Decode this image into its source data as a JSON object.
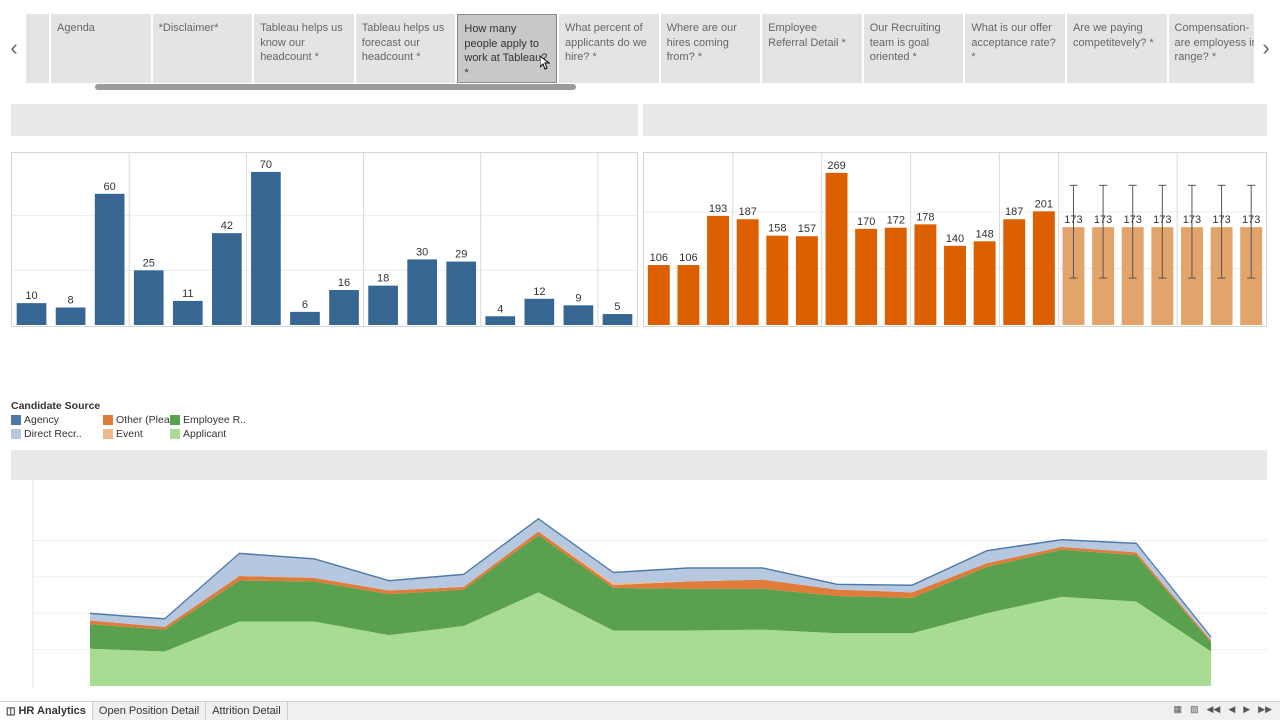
{
  "story": {
    "points": [
      {
        "label": "Agenda"
      },
      {
        "label": "*Disclaimer*"
      },
      {
        "label": "Tableau helps us know our headcount *"
      },
      {
        "label": "Tableau helps us forecast our headcount *"
      },
      {
        "label": "How many people apply to work at Tableau? *",
        "active": true
      },
      {
        "label": "What percent of applicants do we hire? *"
      },
      {
        "label": "Where are our hires coming from? *"
      },
      {
        "label": "Employee Referral Detail *"
      },
      {
        "label": "Our Recruiting team is goal oriented *"
      },
      {
        "label": "What is our offer acceptance rate? *"
      },
      {
        "label": "Are we paying competitevely? *"
      },
      {
        "label": "Compensation- are employess in range? *"
      }
    ],
    "prev_icon": "chevron-left-icon",
    "next_icon": "chevron-right-icon"
  },
  "colors": {
    "blue": "#376693",
    "orange": "#dc6000",
    "orange_light": "#e2a46a",
    "agency": "#4e79a7",
    "other": "#e07b39",
    "employee_referral": "#59a14f",
    "direct_recruiting": "#b6c8e0",
    "event": "#f0b88a",
    "applicant": "#a8dc92"
  },
  "chart_data": [
    {
      "type": "bar",
      "values": [
        10,
        8,
        60,
        25,
        11,
        42,
        70,
        6,
        16,
        18,
        30,
        29,
        4,
        12,
        9,
        5
      ],
      "groups": [
        3,
        3,
        3,
        3,
        3,
        1
      ],
      "ylim": [
        0,
        75
      ]
    },
    {
      "type": "bar",
      "values": [
        106,
        106,
        193,
        187,
        158,
        157,
        269,
        170,
        172,
        178,
        140,
        148,
        187,
        201,
        173,
        173,
        173,
        173,
        173,
        173,
        173
      ],
      "forecast_from_index": 14,
      "groups": [
        3,
        3,
        3,
        3,
        2,
        4,
        3
      ],
      "ylim": [
        0,
        290
      ],
      "error_bars": {
        "upper": 247,
        "lower": 83
      }
    },
    {
      "type": "area",
      "stacked": true,
      "legend": {
        "title": "Candidate Source",
        "entries": [
          "Agency",
          "Other (Plea..",
          "Employee R..",
          "Direct Recr..",
          "Event",
          "Applicant"
        ]
      },
      "series": [
        {
          "name": "Applicant",
          "values": [
            41,
            38,
            71,
            71,
            56,
            66,
            103,
            61,
            61,
            62,
            58,
            58,
            80,
            98,
            93,
            38
          ]
        },
        {
          "name": "Employee R..",
          "values": [
            27,
            24,
            45,
            44,
            45,
            40,
            63,
            47,
            46,
            45,
            41,
            39,
            51,
            52,
            51,
            10
          ]
        },
        {
          "name": "Other (Plea..",
          "values": [
            4,
            3,
            5,
            4,
            4,
            3,
            4,
            3,
            8,
            10,
            7,
            6,
            4,
            3,
            3,
            2
          ]
        },
        {
          "name": "Event",
          "values": [
            0,
            0,
            0,
            0,
            0,
            0,
            0,
            2,
            0,
            0,
            0,
            0,
            0,
            0,
            0,
            0
          ]
        },
        {
          "name": "Direct Recr..",
          "values": [
            7,
            8,
            24,
            20,
            10,
            13,
            13,
            11,
            14,
            12,
            5,
            7,
            13,
            7,
            9,
            3
          ]
        },
        {
          "name": "Agency",
          "values": [
            1,
            1,
            1,
            1,
            1,
            1,
            1,
            1,
            1,
            1,
            1,
            1,
            1,
            1,
            1,
            1
          ]
        }
      ],
      "ylim": [
        0,
        220
      ]
    }
  ],
  "tabs": [
    {
      "label": "HR Analytics",
      "active": true
    },
    {
      "label": "Open Position Detail"
    },
    {
      "label": "Attrition Detail"
    }
  ]
}
